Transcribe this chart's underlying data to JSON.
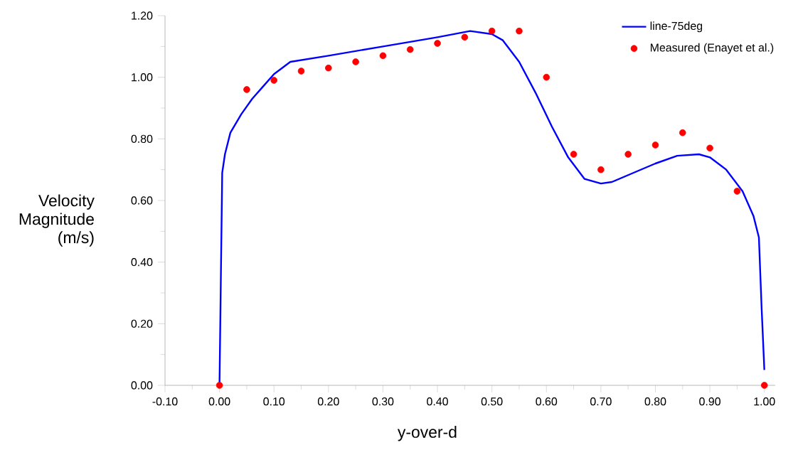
{
  "chart_data": {
    "type": "line",
    "xlabel": "y-over-d",
    "ylabel": "Velocity Magnitude (m/s)",
    "xlim": [
      -0.1,
      1.02
    ],
    "ylim": [
      0,
      1.2
    ],
    "xticks": [
      {
        "value": -0.1,
        "label": "-0.10"
      },
      {
        "value": 0,
        "label": "0.00"
      },
      {
        "value": 0.1,
        "label": "0.10"
      },
      {
        "value": 0.2,
        "label": "0.20"
      },
      {
        "value": 0.3,
        "label": "0.30"
      },
      {
        "value": 0.4,
        "label": "0.40"
      },
      {
        "value": 0.5,
        "label": "0.50"
      },
      {
        "value": 0.6,
        "label": "0.60"
      },
      {
        "value": 0.7,
        "label": "0.70"
      },
      {
        "value": 0.8,
        "label": "0.80"
      },
      {
        "value": 0.9,
        "label": "0.90"
      },
      {
        "value": 1.0,
        "label": "1.00"
      }
    ],
    "yticks": [
      {
        "value": 0,
        "label": "0.00"
      },
      {
        "value": 0.2,
        "label": "0.20"
      },
      {
        "value": 0.4,
        "label": "0.40"
      },
      {
        "value": 0.6,
        "label": "0.60"
      },
      {
        "value": 0.8,
        "label": "0.80"
      },
      {
        "value": 1.0,
        "label": "1.00"
      },
      {
        "value": 1.2,
        "label": "1.20"
      }
    ],
    "grid": false,
    "legend": "top right",
    "series": [
      {
        "name": "line-75deg",
        "color": "#0000ff",
        "marker": "none",
        "x": [
          0,
          0.005,
          0.01,
          0.02,
          0.04,
          0.06,
          0.08,
          0.1,
          0.13,
          0.2,
          0.3,
          0.4,
          0.46,
          0.5,
          0.52,
          0.55,
          0.58,
          0.61,
          0.64,
          0.67,
          0.7,
          0.72,
          0.76,
          0.8,
          0.84,
          0.88,
          0.9,
          0.93,
          0.96,
          0.98,
          0.99,
          0.995,
          1.0
        ],
        "values": [
          0,
          0.69,
          0.75,
          0.82,
          0.88,
          0.93,
          0.97,
          1.01,
          1.05,
          1.07,
          1.1,
          1.13,
          1.15,
          1.14,
          1.12,
          1.05,
          0.95,
          0.84,
          0.74,
          0.67,
          0.655,
          0.66,
          0.69,
          0.72,
          0.745,
          0.75,
          0.74,
          0.7,
          0.63,
          0.55,
          0.48,
          0.25,
          0.05
        ]
      },
      {
        "name": "Measured (Enayet et al.)",
        "type": "scatter",
        "color": "#ff0000",
        "marker": "circle",
        "x": [
          0,
          0.05,
          0.1,
          0.15,
          0.2,
          0.25,
          0.3,
          0.35,
          0.4,
          0.45,
          0.5,
          0.55,
          0.6,
          0.65,
          0.7,
          0.75,
          0.8,
          0.85,
          0.9,
          0.95,
          1.0
        ],
        "values": [
          0,
          0.96,
          0.99,
          1.02,
          1.03,
          1.05,
          1.07,
          1.09,
          1.11,
          1.13,
          1.15,
          1.15,
          1.0,
          0.75,
          0.7,
          0.75,
          0.78,
          0.82,
          0.77,
          0.63,
          0
        ]
      }
    ]
  }
}
